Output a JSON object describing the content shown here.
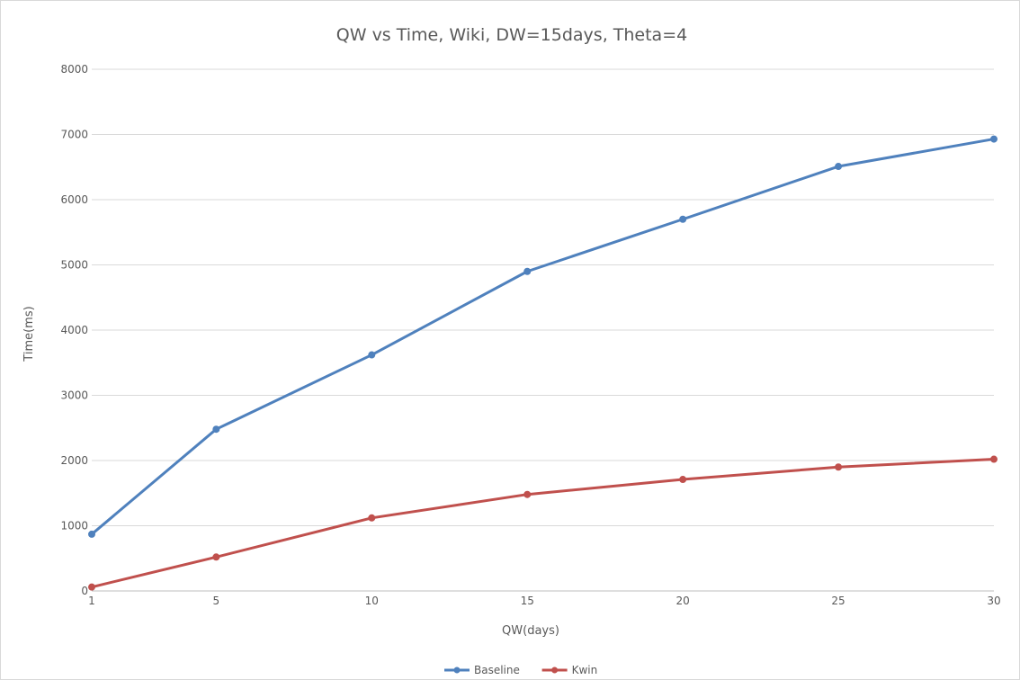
{
  "chart_data": {
    "type": "line",
    "title": "QW vs Time, Wiki, DW=15days, Theta=4",
    "xlabel": "QW(days)",
    "ylabel": "Time(ms)",
    "x": [
      1,
      5,
      10,
      15,
      20,
      25,
      30
    ],
    "x_tick_labels": [
      "1",
      "5",
      "10",
      "15",
      "20",
      "25",
      "30"
    ],
    "ylim": [
      0,
      8000
    ],
    "y_ticks": [
      0,
      1000,
      2000,
      3000,
      4000,
      5000,
      6000,
      7000,
      8000
    ],
    "grid": "horizontal",
    "legend_position": "bottom",
    "series": [
      {
        "name": "Baseline",
        "color": "#4f81bd",
        "values": [
          870,
          2480,
          3620,
          4900,
          5700,
          6510,
          6930
        ]
      },
      {
        "name": "Kwin",
        "color": "#c0504d",
        "values": [
          60,
          520,
          1120,
          1480,
          1710,
          1900,
          2020
        ]
      }
    ]
  }
}
